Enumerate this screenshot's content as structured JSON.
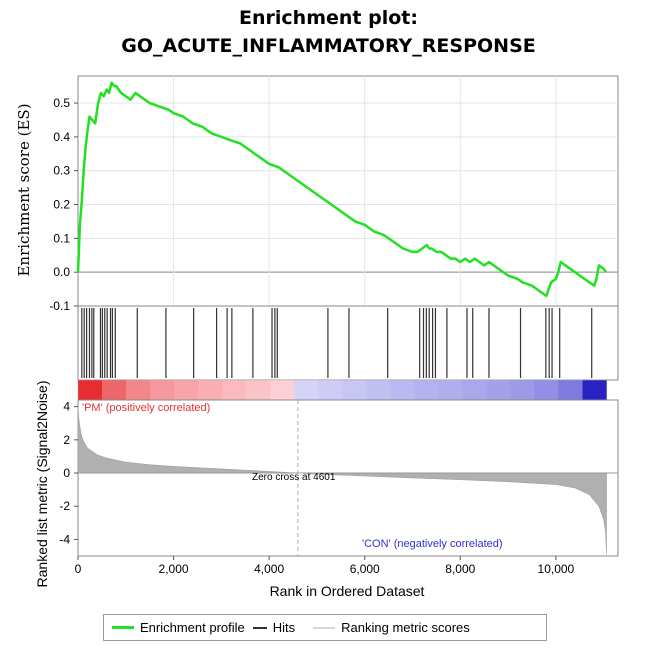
{
  "title_line1": "Enrichment plot:",
  "title_line2": "GO_ACUTE_INFLAMMATORY_RESPONSE",
  "colors": {
    "profile": "#22e022",
    "hits": "#333333",
    "metric": "#b0b0b0",
    "pos_label": "#e83030",
    "neg_label": "#3030d0"
  },
  "chart_data": [
    {
      "type": "line",
      "title": "Enrichment plot: GO_ACUTE_INFLAMMATORY_RESPONSE",
      "ylabel": "Enrichment score (ES)",
      "xlim": [
        0,
        11300
      ],
      "ylim": [
        -0.1,
        0.58
      ],
      "yticks": [
        -0.1,
        0.0,
        0.1,
        0.2,
        0.3,
        0.4,
        0.5
      ],
      "ytick_labels": [
        "-0.1",
        "0.0",
        "0.1",
        "0.2",
        "0.3",
        "0.4",
        "0.5"
      ],
      "grid": true,
      "series": [
        {
          "name": "Enrichment profile",
          "x": [
            0,
            40,
            80,
            120,
            160,
            200,
            240,
            300,
            360,
            420,
            480,
            540,
            600,
            650,
            700,
            760,
            800,
            900,
            1000,
            1100,
            1200,
            1300,
            1500,
            1700,
            1900,
            2000,
            2200,
            2400,
            2600,
            2800,
            3000,
            3200,
            3400,
            3600,
            3800,
            4000,
            4200,
            4400,
            4600,
            4800,
            5000,
            5200,
            5400,
            5600,
            5800,
            6000,
            6200,
            6400,
            6600,
            6800,
            7000,
            7100,
            7200,
            7300,
            7350,
            7400,
            7500,
            7600,
            7700,
            7800,
            7900,
            8000,
            8100,
            8200,
            8300,
            8400,
            8500,
            8600,
            8800,
            9000,
            9200,
            9300,
            9500,
            9700,
            9800,
            9850,
            9900,
            10000,
            10050,
            10100,
            10200,
            10300,
            10500,
            10700,
            10800,
            10850,
            10900,
            11000,
            11050
          ],
          "y": [
            0.0,
            0.14,
            0.21,
            0.3,
            0.37,
            0.42,
            0.46,
            0.45,
            0.44,
            0.5,
            0.53,
            0.52,
            0.54,
            0.53,
            0.56,
            0.55,
            0.55,
            0.53,
            0.52,
            0.51,
            0.53,
            0.52,
            0.5,
            0.49,
            0.48,
            0.47,
            0.46,
            0.44,
            0.43,
            0.41,
            0.4,
            0.39,
            0.38,
            0.36,
            0.34,
            0.32,
            0.31,
            0.29,
            0.27,
            0.25,
            0.23,
            0.21,
            0.19,
            0.17,
            0.15,
            0.14,
            0.12,
            0.11,
            0.09,
            0.07,
            0.06,
            0.06,
            0.07,
            0.08,
            0.07,
            0.07,
            0.06,
            0.06,
            0.05,
            0.04,
            0.04,
            0.03,
            0.04,
            0.03,
            0.04,
            0.03,
            0.02,
            0.03,
            0.01,
            -0.01,
            -0.02,
            -0.03,
            -0.04,
            -0.06,
            -0.07,
            -0.05,
            -0.03,
            -0.02,
            0.0,
            0.03,
            0.02,
            0.01,
            -0.01,
            -0.03,
            -0.04,
            -0.02,
            0.02,
            0.01,
            0.0
          ]
        }
      ]
    },
    {
      "type": "scatter",
      "ylabel": "",
      "series": [
        {
          "name": "Hits",
          "x": [
            80,
            130,
            180,
            240,
            290,
            330,
            470,
            510,
            560,
            610,
            680,
            720,
            780,
            1240,
            1840,
            2420,
            2900,
            3120,
            3220,
            3660,
            4060,
            4120,
            4170,
            5230,
            5670,
            6480,
            7150,
            7230,
            7290,
            7350,
            7420,
            7480,
            7720,
            8140,
            8260,
            8600,
            9260,
            9790,
            9860,
            9920,
            10080,
            10750
          ]
        }
      ]
    },
    {
      "type": "area",
      "ylabel": "Ranked list metric (Signal2Noise)",
      "xlabel": "Rank in Ordered Dataset",
      "xlim": [
        0,
        11300
      ],
      "ylim": [
        -5,
        4.4
      ],
      "xticks": [
        0,
        2000,
        4000,
        6000,
        8000,
        10000
      ],
      "xtick_labels": [
        "0",
        "2,000",
        "4,000",
        "6,000",
        "8,000",
        "10,000"
      ],
      "yticks": [
        -4,
        -2,
        0,
        2,
        4
      ],
      "ytick_labels": [
        "-4",
        "-2",
        "0",
        "2",
        "4"
      ],
      "series": [
        {
          "name": "Ranking metric scores",
          "x": [
            0,
            20,
            60,
            100,
            200,
            400,
            600,
            1000,
            1500,
            2000,
            2500,
            3000,
            3500,
            4000,
            4601,
            5000,
            6000,
            7000,
            8000,
            9000,
            10000,
            10400,
            10700,
            10900,
            11000,
            11040,
            11060
          ],
          "y": [
            4.0,
            3.2,
            2.4,
            2.0,
            1.5,
            1.1,
            0.9,
            0.65,
            0.5,
            0.4,
            0.32,
            0.25,
            0.17,
            0.1,
            0.0,
            -0.07,
            -0.18,
            -0.3,
            -0.4,
            -0.52,
            -0.7,
            -0.9,
            -1.3,
            -2.0,
            -2.8,
            -3.6,
            -4.9
          ]
        }
      ],
      "annotations": {
        "zero_cross": "Zero cross at 4601",
        "zero_cross_x": 4601,
        "pos_label": "'PM' (positively correlated)",
        "neg_label": "'CON' (negatively correlated)"
      }
    }
  ],
  "legend": {
    "profile_label": "Enrichment profile",
    "hits_label": "Hits",
    "metric_label": "Ranking metric scores"
  }
}
